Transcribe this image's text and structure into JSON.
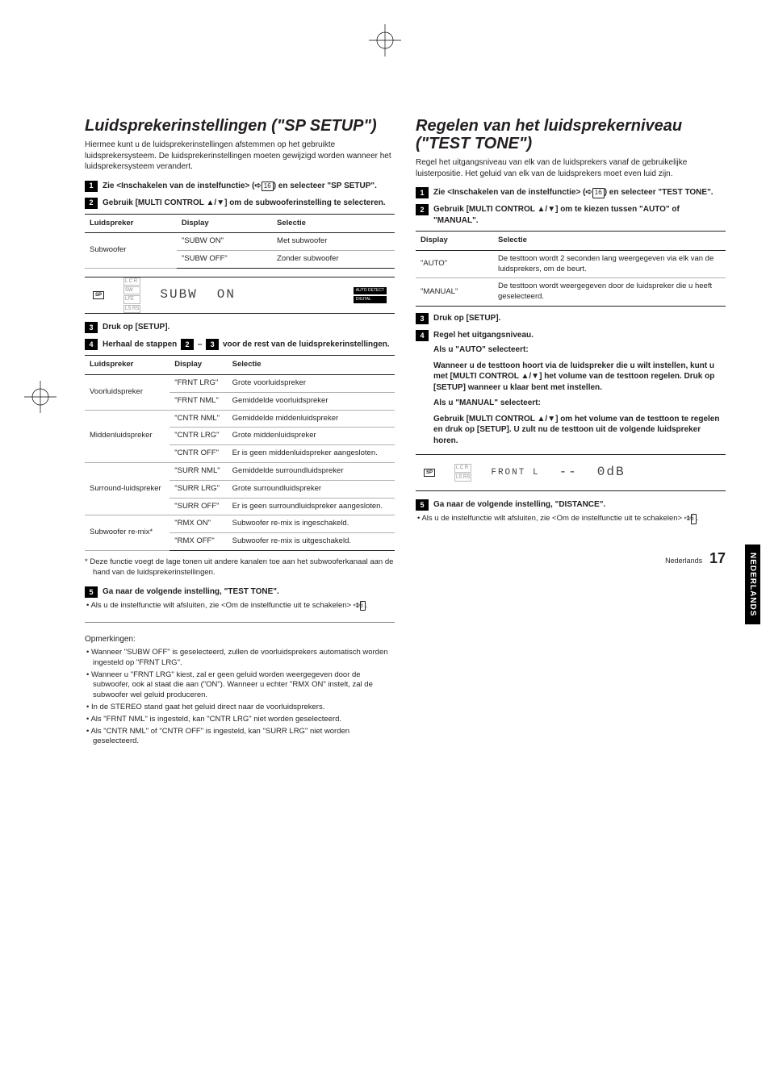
{
  "sidetab": "NEDERLANDS",
  "footer": {
    "lang": "Nederlands",
    "page": "17"
  },
  "left": {
    "title": "Luidsprekerinstellingen (\"SP SETUP\")",
    "intro": "Hiermee kunt u de luidsprekerinstellingen afstemmen op het gebruikte luidsprekersysteem. De luidsprekerinstellingen moeten gewijzigd worden wanneer het luidsprekersysteem verandert.",
    "step1": {
      "prefix": "Zie <Inschakelen van de instelfunctie> (➪",
      "ref": "16",
      "suffix": ") en selecteer \"SP SETUP\"."
    },
    "step2": "Gebruik [MULTI CONTROL ▲/▼] om de subwooferinstelling te selecteren.",
    "table1": {
      "headers": [
        "Luidspreker",
        "Display",
        "Selectie"
      ],
      "rows": [
        {
          "speaker": "Subwoofer",
          "display": "\"SUBW ON\"",
          "sel": "Met subwoofer"
        },
        {
          "speaker": "",
          "display": "\"SUBW OFF\"",
          "sel": "Zonder subwoofer"
        }
      ]
    },
    "display1": {
      "label": "SP",
      "main": "SUBW",
      "sub": "ON",
      "badges": [
        "AUTO DETECT",
        "DIGITAL"
      ]
    },
    "step3": "Druk op [SETUP].",
    "step4": {
      "pre": "Herhaal de stappen ",
      "a": "2",
      "mid": " – ",
      "b": "3",
      "post": " voor de rest van de luidsprekerinstellingen."
    },
    "table2": {
      "headers": [
        "Luidspreker",
        "Display",
        "Selectie"
      ],
      "groups": [
        {
          "speaker": "Voorluidspreker",
          "rows": [
            {
              "d": "\"FRNT LRG\"",
              "s": "Grote voorluidspreker"
            },
            {
              "d": "\"FRNT NML\"",
              "s": "Gemiddelde voorluidspreker"
            }
          ]
        },
        {
          "speaker": "Middenluidspreker",
          "rows": [
            {
              "d": "\"CNTR NML\"",
              "s": "Gemiddelde middenluidspreker"
            },
            {
              "d": "\"CNTR LRG\"",
              "s": "Grote middenluidspreker"
            },
            {
              "d": "\"CNTR OFF\"",
              "s": "Er is geen middenluidspreker aangesloten."
            }
          ]
        },
        {
          "speaker": "Surround-luidspreker",
          "rows": [
            {
              "d": "\"SURR NML\"",
              "s": "Gemiddelde surroundluidspreker"
            },
            {
              "d": "\"SURR LRG\"",
              "s": "Grote surroundluidspreker"
            },
            {
              "d": "\"SURR OFF\"",
              "s": "Er is geen surroundluidspreker aangesloten."
            }
          ]
        },
        {
          "speaker": "Subwoofer re-mix*",
          "rows": [
            {
              "d": "\"RMX ON\"",
              "s": "Subwoofer re-mix is ingeschakeld."
            },
            {
              "d": "\"RMX OFF\"",
              "s": "Subwoofer re-mix is uitgeschakeld."
            }
          ]
        }
      ]
    },
    "footnote": "*  Deze functie voegt de lage tonen uit andere kanalen toe aan het subwooferkanaal aan de hand van de luidsprekerinstellingen.",
    "step5": "Ga naar de volgende instelling, \"TEST TONE\".",
    "step5_note": {
      "pre": "Als u de instelfunctie wilt afsluiten, zie <Om de instelfunctie uit te schakelen> ➪",
      "ref": "16",
      "post": "."
    },
    "notes_head": "Opmerkingen:",
    "notes": [
      "Wanneer \"SUBW OFF\" is geselecteerd, zullen de voorluidsprekers automatisch worden ingesteld op \"FRNT LRG\".",
      "Wanneer u \"FRNT LRG\" kiest, zal er geen geluid worden weergegeven door de subwoofer, ook al staat die aan (\"ON\"). Wanneer u echter \"RMX ON\" instelt, zal de subwoofer wel geluid produceren.",
      "In de STEREO stand gaat het geluid direct naar de voorluidsprekers.",
      "Als \"FRNT NML\" is ingesteld, kan \"CNTR LRG\" niet worden geselecteerd.",
      "Als \"CNTR NML\" of \"CNTR OFF\" is ingesteld, kan \"SURR LRG\" niet worden geselecteerd."
    ]
  },
  "right": {
    "title": "Regelen van het luidsprekerniveau (\"TEST TONE\")",
    "intro": "Regel het uitgangsniveau van elk van de luidsprekers vanaf de gebruikelijke luisterpositie. Het geluid van elk van de luidsprekers moet even luid zijn.",
    "step1": {
      "prefix": "Zie <Inschakelen van de instelfunctie> (➪",
      "ref": "16",
      "suffix": ") en selecteer \"TEST TONE\"."
    },
    "step2": "Gebruik [MULTI CONTROL ▲/▼] om te kiezen tussen \"AUTO\" of \"MANUAL\".",
    "table": {
      "headers": [
        "Display",
        "Selectie"
      ],
      "rows": [
        {
          "d": "\"AUTO\"",
          "s": "De testtoon wordt 2 seconden lang weergegeven via elk van de luidsprekers, om de beurt."
        },
        {
          "d": "\"MANUAL\"",
          "s": "De testtoon wordt weergegeven door de luidspreker die u heeft geselecteerd."
        }
      ]
    },
    "step3": "Druk op [SETUP].",
    "step4": "Regel het uitgangsniveau.",
    "auto_head": "Als u \"AUTO\" selecteert:",
    "auto_body": "Wanneer u de testtoon hoort via de luidspreker die u wilt instellen, kunt u met [MULTI CONTROL ▲/▼] het volume van de testtoon regelen. Druk op [SETUP] wanneer u klaar bent met instellen.",
    "manual_head": "Als u \"MANUAL\" selecteert:",
    "manual_body": "Gebruik [MULTI CONTROL ▲/▼] om het volume van de testtoon te regelen en druk op [SETUP]. U zult nu de testtoon uit de volgende luidspreker horen.",
    "display": {
      "label": "SP",
      "main": "FRONT L",
      "sub": "-- ",
      "val": "0dB"
    },
    "step5": "Ga naar de volgende instelling, \"DISTANCE\".",
    "step5_note": {
      "pre": "Als u de instelfunctie wilt afsluiten, zie <Om de instelfunctie uit te schakelen> ➪",
      "ref": "16",
      "post": "."
    }
  }
}
